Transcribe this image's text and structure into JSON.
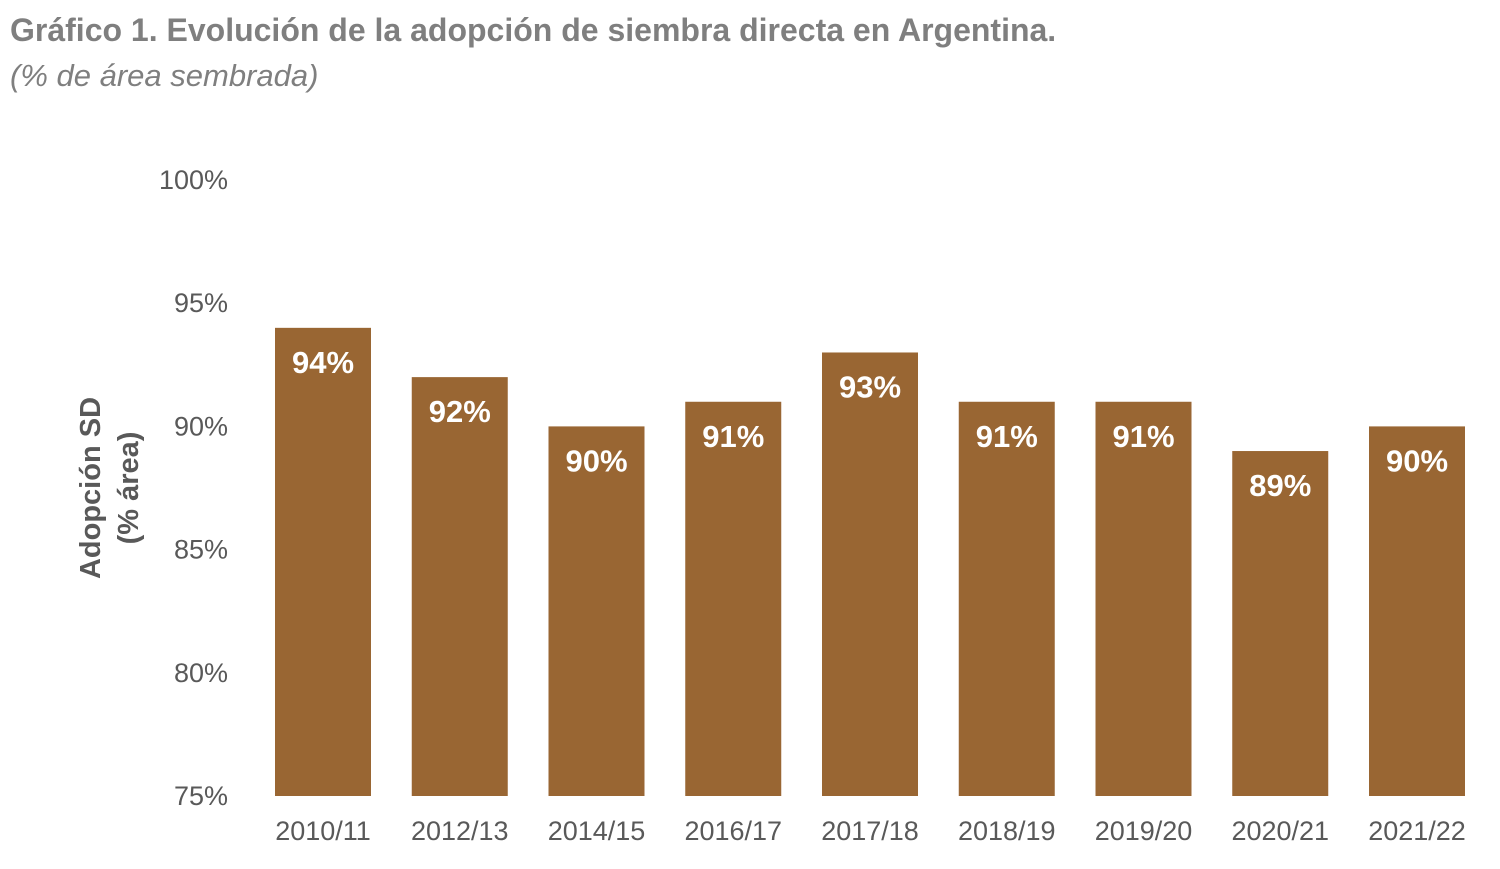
{
  "chart_data": {
    "type": "bar",
    "title": "Gráfico 1. Evolución de la adopción de siembra directa en Argentina.",
    "subtitle": "(% de área sembrada)",
    "categories": [
      "2010/11",
      "2012/13",
      "2014/15",
      "2016/17",
      "2017/18",
      "2018/19",
      "2019/20",
      "2020/21",
      "2021/22"
    ],
    "values": [
      94,
      92,
      90,
      91,
      93,
      91,
      91,
      89,
      90
    ],
    "data_labels": [
      "94%",
      "92%",
      "90%",
      "91%",
      "93%",
      "91%",
      "91%",
      "89%",
      "90%"
    ],
    "ylabel_lines": [
      "Adopción SD",
      "(% área)"
    ],
    "ylim": [
      75,
      100
    ],
    "yticks": [
      75,
      80,
      85,
      90,
      95,
      100
    ],
    "ytick_labels": [
      "75%",
      "80%",
      "85%",
      "90%",
      "95%",
      "100%"
    ],
    "grid": false,
    "legend": "none",
    "bar_color": "#996633",
    "label_color": "#ffffff"
  }
}
